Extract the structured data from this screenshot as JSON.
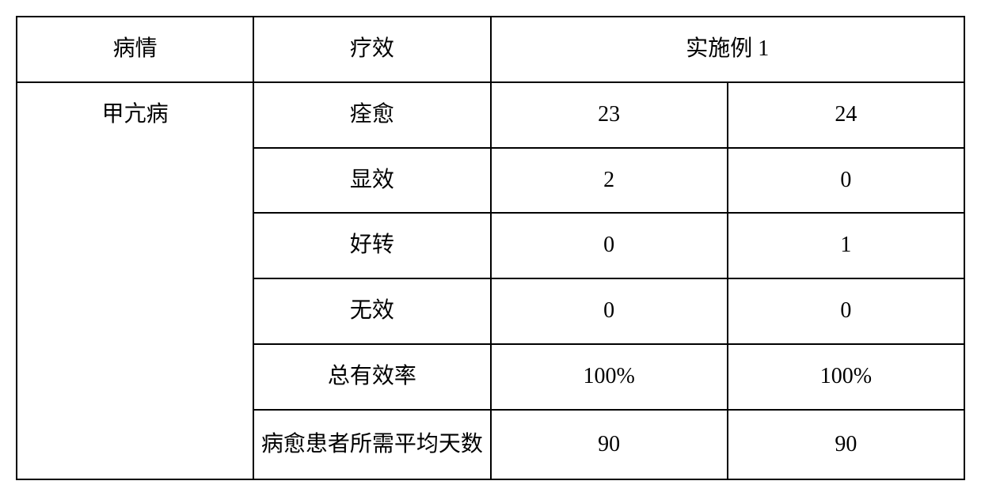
{
  "table": {
    "type": "table",
    "columns": 4,
    "rows": 7,
    "column_widths": [
      "25%",
      "25%",
      "25%",
      "25%"
    ],
    "border_color": "#000000",
    "border_width": 2,
    "background_color": "#ffffff",
    "text_color": "#000000",
    "font_size": 28,
    "font_family": "SimSun",
    "cell_padding": "18px 8px",
    "text_align": "center",
    "headers": {
      "col1": "病情",
      "col2": "疗效",
      "col34_merged": "实施例 1"
    },
    "body": {
      "condition_name": "甲亢病",
      "rows": [
        {
          "efficacy": "痊愈",
          "value_a": "23",
          "value_b": "24"
        },
        {
          "efficacy": "显效",
          "value_a": "2",
          "value_b": "0"
        },
        {
          "efficacy": "好转",
          "value_a": "0",
          "value_b": "1"
        },
        {
          "efficacy": "无效",
          "value_a": "0",
          "value_b": "0"
        },
        {
          "efficacy": "总有效率",
          "value_a": "100%",
          "value_b": "100%"
        },
        {
          "efficacy": "病愈患者所需平均天数",
          "value_a": "90",
          "value_b": "90"
        }
      ]
    }
  }
}
